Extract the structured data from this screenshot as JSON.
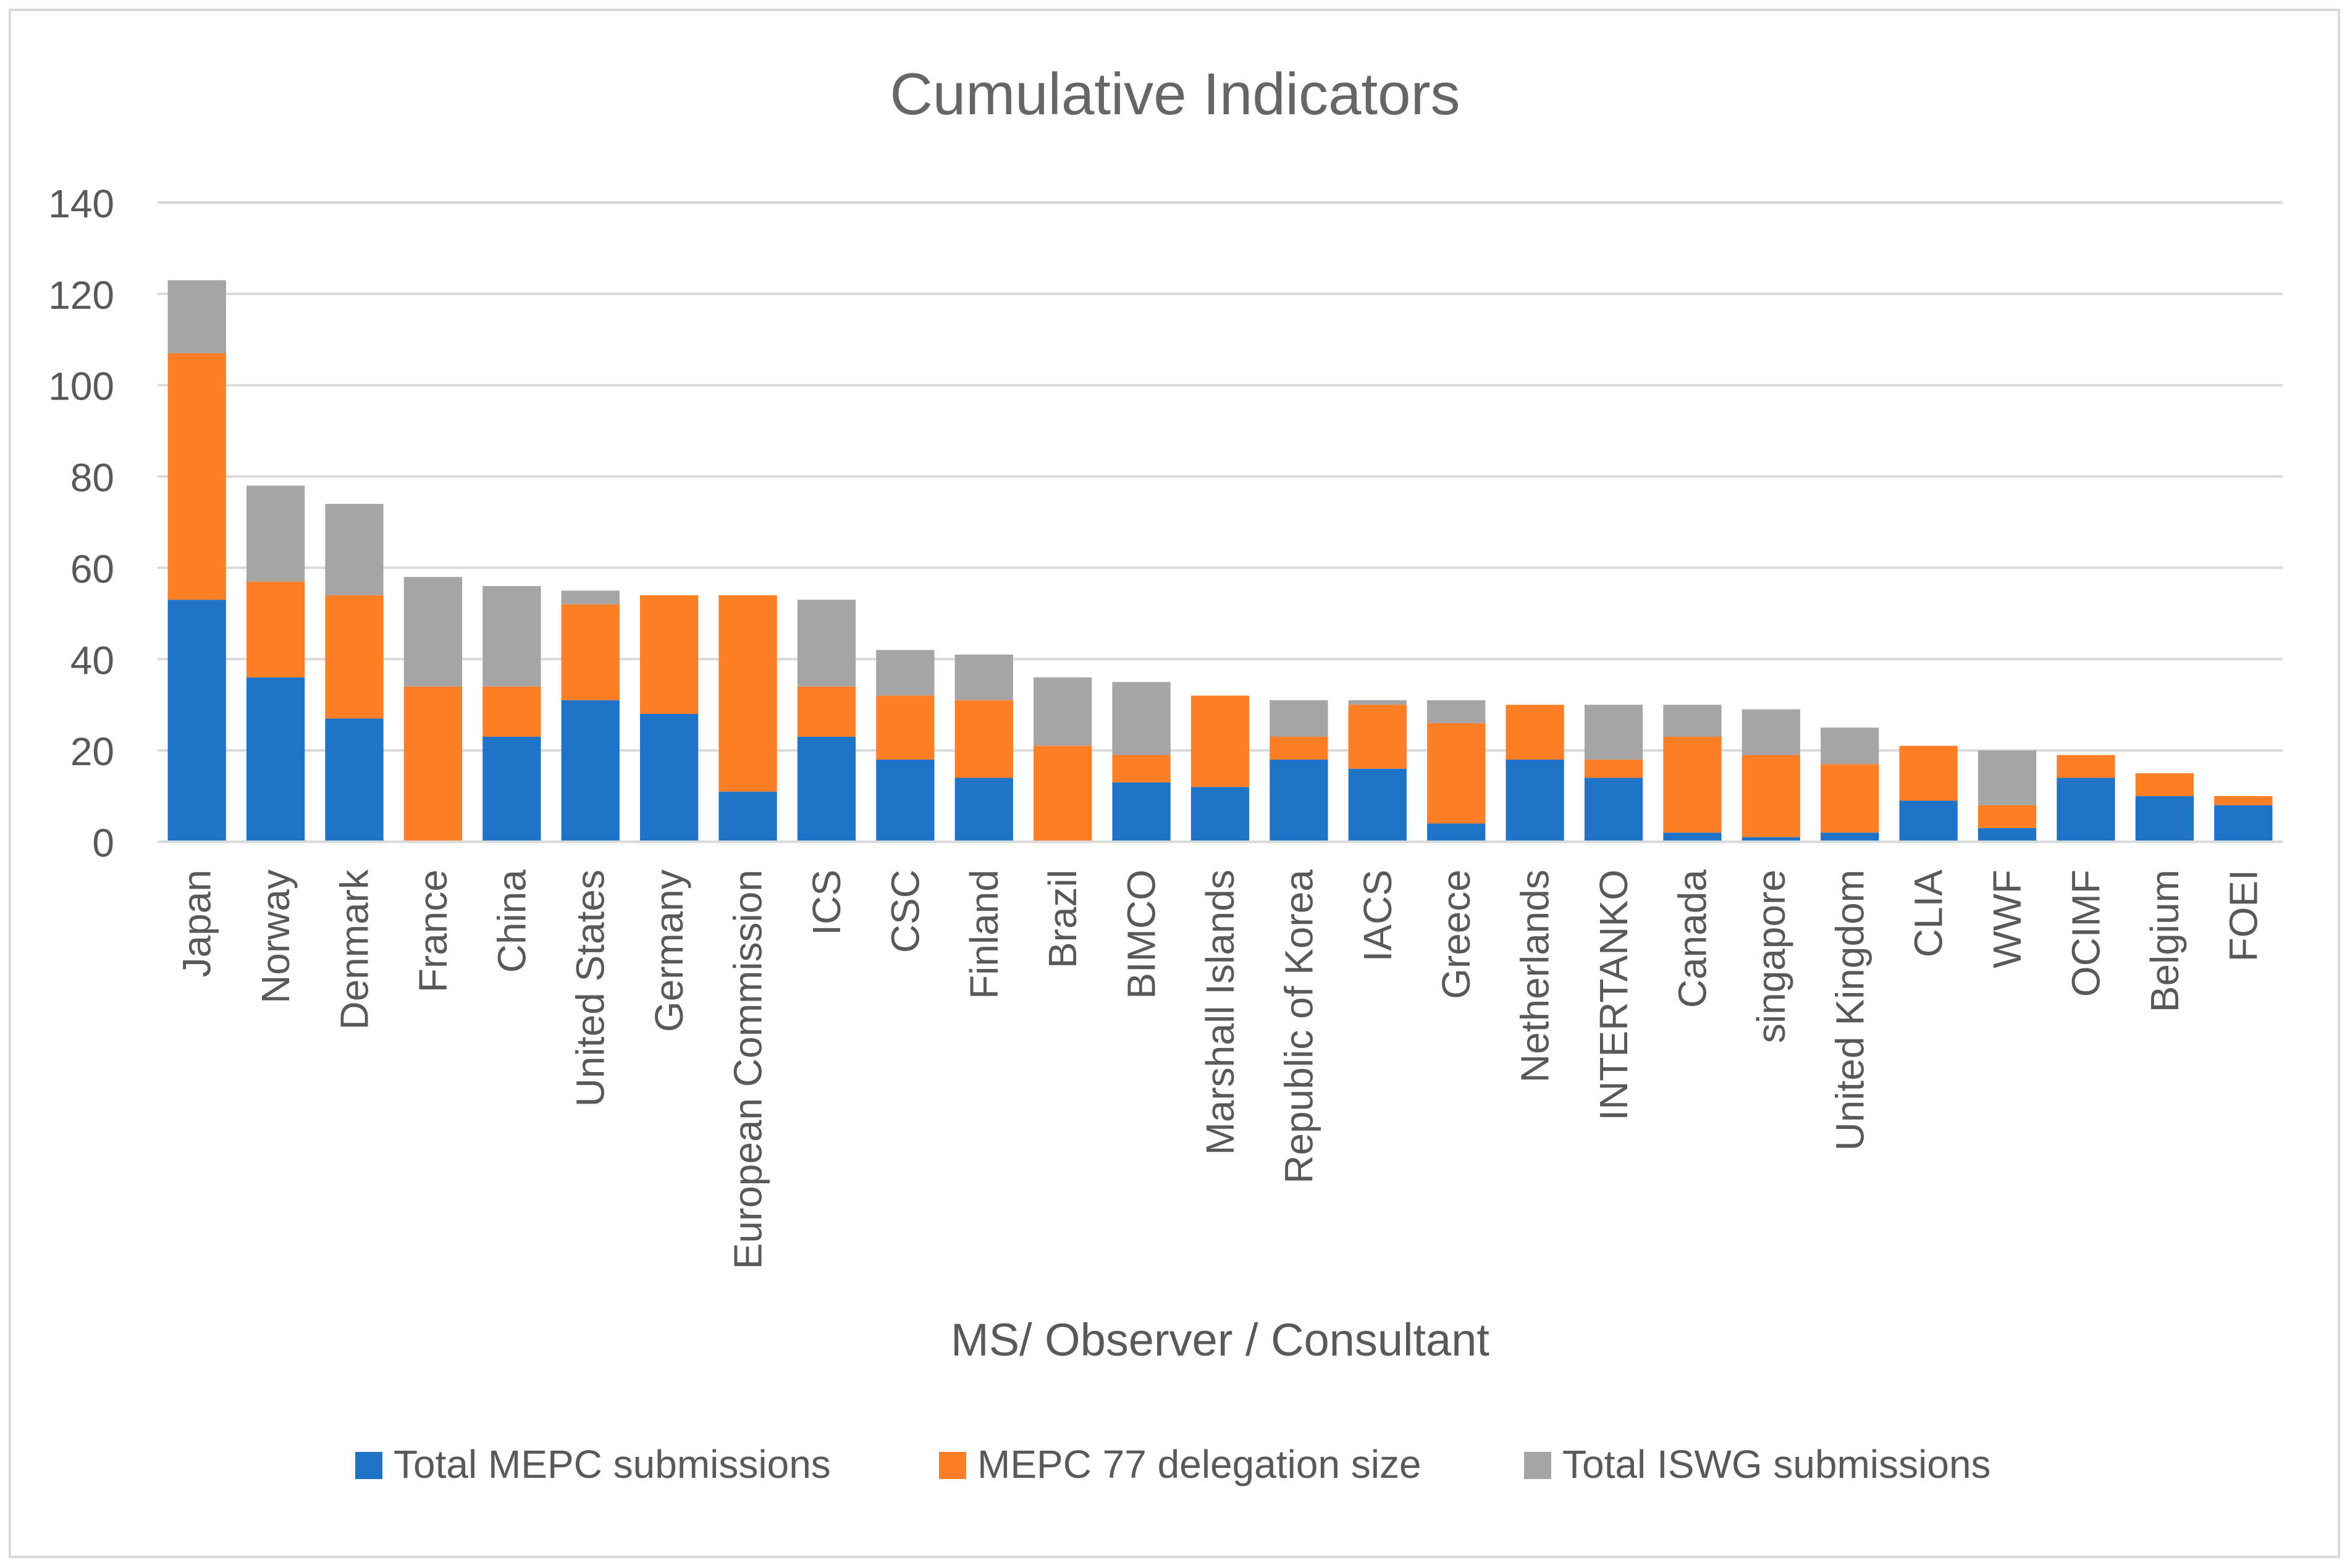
{
  "chart_data": {
    "type": "bar",
    "stacked": true,
    "title": "Cumulative Indicators",
    "xlabel": "MS/ Observer / Consultant",
    "ylabel": "",
    "ylim": [
      0,
      140
    ],
    "yticks": [
      "0",
      "20",
      "40",
      "60",
      "80",
      "100",
      "120",
      "140"
    ],
    "grid": true,
    "legend_position": "bottom",
    "categories": [
      "Japan",
      "Norway",
      "Denmark",
      "France",
      "China",
      "United States",
      "Germany",
      "European Commission",
      "ICS",
      "CSC",
      "Finland",
      "Brazil",
      "BIMCO",
      "Marshall Islands",
      "Republic of Korea",
      "IACS",
      "Greece",
      "Netherlands",
      "INTERTANKO",
      "Canada",
      "singapore",
      "United Kingdom",
      "CLIA",
      "WWF",
      "OCIMF",
      "Belgium",
      "FOEI"
    ],
    "series": [
      {
        "name": "Total MEPC submissions",
        "color": "#1f74c9",
        "values": [
          53,
          36,
          27,
          0,
          23,
          31,
          28,
          11,
          23,
          18,
          14,
          0,
          13,
          12,
          18,
          16,
          4,
          18,
          14,
          2,
          1,
          2,
          9,
          3,
          14,
          10,
          8
        ]
      },
      {
        "name": "MEPC 77 delegation size",
        "color": "#ff7f27",
        "values": [
          54,
          21,
          27,
          34,
          11,
          21,
          26,
          43,
          11,
          14,
          17,
          21,
          6,
          20,
          5,
          14,
          22,
          12,
          4,
          21,
          18,
          15,
          12,
          5,
          5,
          5,
          2
        ]
      },
      {
        "name": "Total ISWG submissions",
        "color": "#a5a5a5",
        "values": [
          16,
          21,
          20,
          24,
          22,
          3,
          0,
          0,
          19,
          10,
          10,
          15,
          16,
          0,
          8,
          1,
          5,
          0,
          12,
          7,
          10,
          8,
          0,
          12,
          0,
          0,
          0
        ]
      }
    ]
  },
  "colors": {
    "gridline": "#d9d9d9",
    "text": "#595959",
    "title": "#666666"
  }
}
